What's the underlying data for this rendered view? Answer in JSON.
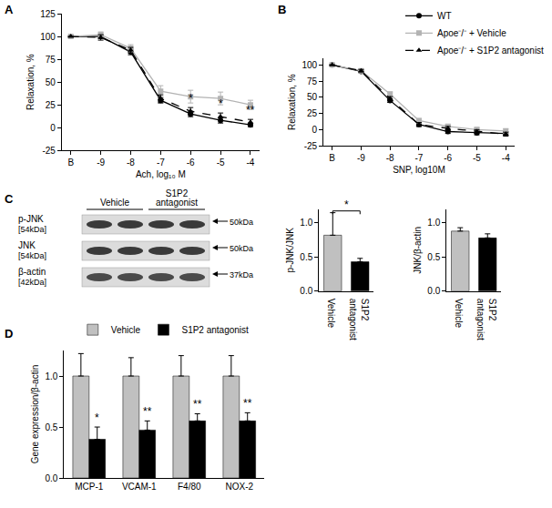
{
  "chart_data": [
    {
      "panel": "A",
      "type": "line",
      "x_label": "Ach, log₁₀ M",
      "y_label": "Relaxation, %",
      "categories": [
        "B",
        "-9",
        "-8",
        "-7",
        "-6",
        "-5",
        "-4"
      ],
      "ylim": [
        -25,
        125
      ],
      "yticks": [
        -25,
        0,
        25,
        50,
        75,
        100,
        125
      ],
      "grid": false,
      "series": [
        {
          "name": "WT",
          "color": "#000000",
          "marker": "circle",
          "line_style": "solid",
          "values": [
            100,
            100,
            83,
            30,
            15,
            8,
            3
          ],
          "errors": [
            0,
            2,
            3,
            3,
            3,
            3,
            2
          ]
        },
        {
          "name": "Apoe⁻/⁻ + Vehicle",
          "color": "#b3b3b3",
          "marker": "square",
          "line_style": "solid",
          "values": [
            100,
            102,
            87,
            40,
            34,
            32,
            25
          ],
          "errors": [
            0,
            3,
            4,
            6,
            7,
            7,
            5
          ]
        },
        {
          "name": "Apoe⁻/⁻ + S1P2 antagonist",
          "color": "#000000",
          "marker": "triangle-up",
          "line_style": "dash",
          "values": [
            100,
            99,
            85,
            32,
            18,
            12,
            6
          ],
          "errors": [
            0,
            3,
            3,
            4,
            4,
            4,
            3
          ]
        }
      ],
      "annotations": [
        {
          "category": "-6",
          "text": "*"
        },
        {
          "category": "-5",
          "text": "*"
        },
        {
          "category": "-4",
          "text": "**"
        }
      ]
    },
    {
      "panel": "B",
      "type": "line",
      "x_label": "SNP, log10M",
      "y_label": "Relaxation, %",
      "categories": [
        "B",
        "-9",
        "-8",
        "-7",
        "-6",
        "-5",
        "-4"
      ],
      "ylim": [
        -25,
        110
      ],
      "yticks": [
        -25,
        0,
        25,
        50,
        75,
        100
      ],
      "grid": false,
      "legend": "top right",
      "series": [
        {
          "name": "WT",
          "color": "#000000",
          "marker": "circle",
          "line_style": "solid",
          "values": [
            100,
            90,
            45,
            8,
            -3,
            -5,
            -6
          ],
          "errors": [
            0,
            2,
            3,
            3,
            3,
            3,
            3
          ]
        },
        {
          "name": "Apoe⁻/⁻ + Vehicle",
          "color": "#b3b3b3",
          "marker": "square",
          "line_style": "solid",
          "values": [
            100,
            91,
            55,
            14,
            5,
            0,
            -2
          ],
          "errors": [
            0,
            2,
            3,
            3,
            3,
            3,
            3
          ]
        },
        {
          "name": "Apoe⁻/⁻ + S1P2 antagonist",
          "color": "#000000",
          "marker": "triangle-up",
          "line_style": "dash",
          "values": [
            100,
            91,
            48,
            8,
            2,
            -3,
            -7
          ],
          "errors": [
            0,
            2,
            3,
            3,
            3,
            3,
            3
          ]
        }
      ]
    },
    {
      "type": "bar",
      "y_label": "p-JNK/JNK",
      "categories": [
        "Vehicle",
        "S1P2 antagonist"
      ],
      "values": [
        0.82,
        0.43
      ],
      "errors": [
        0.33,
        0.05
      ],
      "colors": [
        "#c0c0c0",
        "#000000"
      ],
      "ylim": [
        0,
        1.2
      ],
      "yticks": [
        {
          "value": 0,
          "label": "0.0"
        },
        {
          "value": 0.5,
          "label": "0.5"
        },
        {
          "value": 1,
          "label": "1.0"
        }
      ],
      "grid": false,
      "significance": "*"
    },
    {
      "type": "bar",
      "y_label": "JNK/β-actin",
      "categories": [
        "Vehicle",
        "S1P2 antagonist"
      ],
      "values": [
        0.88,
        0.78
      ],
      "errors": [
        0.05,
        0.06
      ],
      "colors": [
        "#c0c0c0",
        "#000000"
      ],
      "ylim": [
        0,
        1.2
      ],
      "yticks": [
        {
          "value": 0,
          "label": "0.0"
        },
        {
          "value": 0.5,
          "label": "0.5"
        },
        {
          "value": 1,
          "label": "1.0"
        }
      ],
      "grid": false
    },
    {
      "panel": "D",
      "type": "bar",
      "y_label": "Gene expression/β-actin",
      "categories": [
        "MCP-1",
        "VCAM-1",
        "F4/80",
        "NOX-2"
      ],
      "legend": "top",
      "ylim": [
        0,
        1.25
      ],
      "yticks": [
        {
          "value": 0,
          "label": "0.0"
        },
        {
          "value": 0.5,
          "label": "0.5"
        },
        {
          "value": 1,
          "label": "1.0"
        }
      ],
      "grid": false,
      "series": [
        {
          "name": "Vehicle",
          "color": "#c0c0c0",
          "values": [
            1,
            1,
            1,
            1
          ],
          "errors": [
            0.22,
            0.18,
            0.2,
            0.2
          ]
        },
        {
          "name": "S1P2 antagonist",
          "color": "#000000",
          "values": [
            0.38,
            0.47,
            0.56,
            0.56
          ],
          "errors": [
            0.12,
            0.09,
            0.07,
            0.08
          ],
          "significance": [
            "*",
            "**",
            "**",
            "**"
          ]
        }
      ]
    }
  ],
  "blot": {
    "panel": "C",
    "groups": [
      "Vehicle",
      "S1P2 antagonist"
    ],
    "rows": [
      {
        "label": "p-JNK",
        "size": "[54kDa]",
        "ladder": "50kDa"
      },
      {
        "label": "JNK",
        "size": "[54kDa]",
        "ladder": "50kDa"
      },
      {
        "label": "β-actin",
        "size": "[42kDa]",
        "ladder": "37kDa"
      }
    ]
  }
}
